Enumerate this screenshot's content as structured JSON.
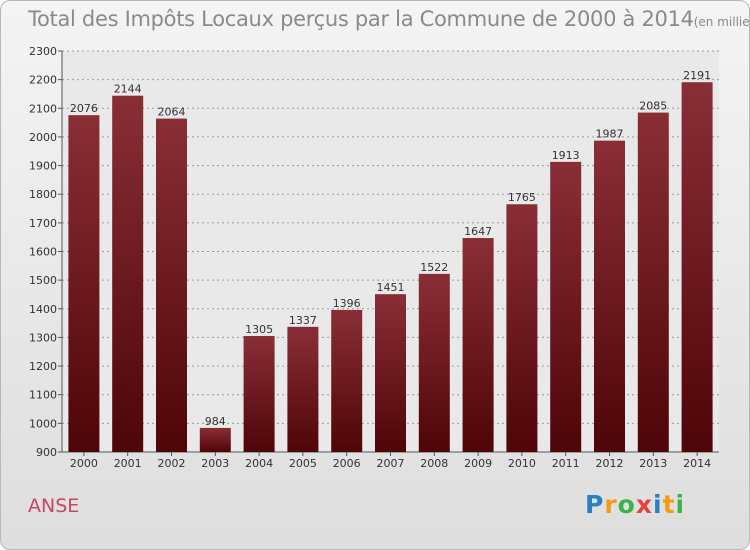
{
  "title": "Total des Impôts Locaux perçus par la Commune de 2000 à 2014",
  "unit_note": "(en milliers d'€)",
  "commune": "ANSE",
  "logo": {
    "letters": [
      "P",
      "r",
      "o",
      "x",
      "i",
      "t",
      "i"
    ],
    "colors": [
      "#2a7fc1",
      "#f39c12",
      "#3bb34a",
      "#e8423a",
      "#2a7fc1",
      "#f39c12",
      "#3bb34a"
    ]
  },
  "colors": {
    "bar_top": "#8a2e36",
    "bar_bottom": "#4e0508",
    "commune": "#c8456a",
    "title": "#8a8a8a"
  },
  "chart_data": {
    "type": "bar",
    "title": "Total des Impôts Locaux perçus par la Commune de 2000 à 2014",
    "xlabel": "",
    "ylabel": "",
    "ylim": [
      900,
      2300
    ],
    "yticks": [
      900,
      1000,
      1100,
      1200,
      1300,
      1400,
      1500,
      1600,
      1700,
      1800,
      1900,
      2000,
      2100,
      2200,
      2300
    ],
    "grid": true,
    "categories": [
      "2000",
      "2001",
      "2002",
      "2003",
      "2004",
      "2005",
      "2006",
      "2007",
      "2008",
      "2009",
      "2010",
      "2011",
      "2012",
      "2013",
      "2014"
    ],
    "values": [
      2076,
      2144,
      2064,
      984,
      1305,
      1337,
      1396,
      1451,
      1522,
      1647,
      1765,
      1913,
      1987,
      2085,
      2191
    ]
  }
}
